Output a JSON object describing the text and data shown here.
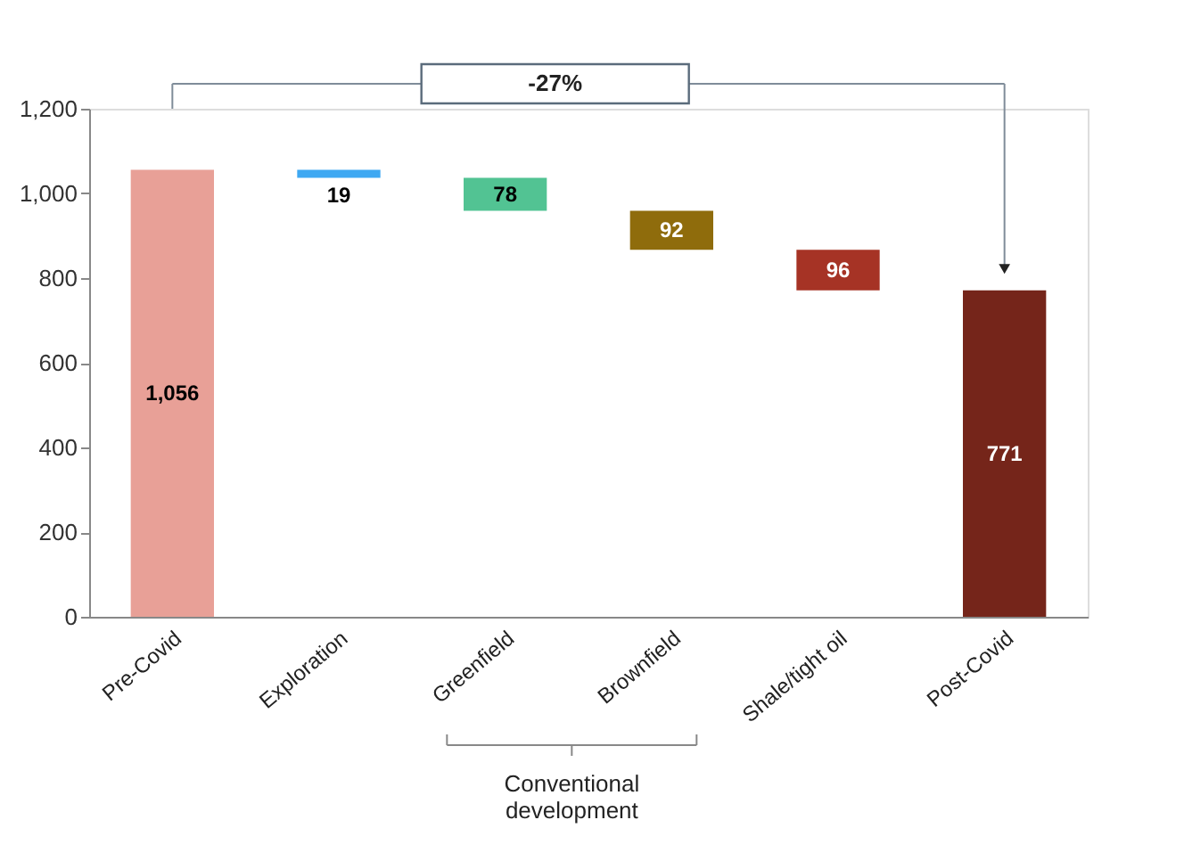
{
  "chart_data": {
    "type": "bar",
    "categories": [
      "Pre-Covid",
      "Exploration",
      "Greenfield",
      "Brownfield",
      "Shale/tight oil",
      "Post-Covid"
    ],
    "values": [
      1056,
      19,
      78,
      92,
      96,
      771
    ],
    "base": [
      0,
      1037,
      959,
      867,
      771,
      0
    ],
    "colors": [
      "#e8a097",
      "#3ea8f2",
      "#52c393",
      "#8f6c0c",
      "#a63325",
      "#75251a"
    ],
    "value_labels": [
      "1,056",
      "19",
      "78",
      "92",
      "96",
      "771"
    ],
    "ylim": [
      0,
      1200
    ],
    "yticks": [
      {
        "value": 0,
        "label": "0"
      },
      {
        "value": 200,
        "label": "200"
      },
      {
        "value": 400,
        "label": "400"
      },
      {
        "value": 600,
        "label": "600"
      },
      {
        "value": 800,
        "label": "800"
      },
      {
        "value": 1000,
        "label": "1,000"
      },
      {
        "value": 1200,
        "label": "1,200"
      }
    ],
    "annotations": [
      "-27%",
      "Conventional development"
    ],
    "grid": false
  }
}
